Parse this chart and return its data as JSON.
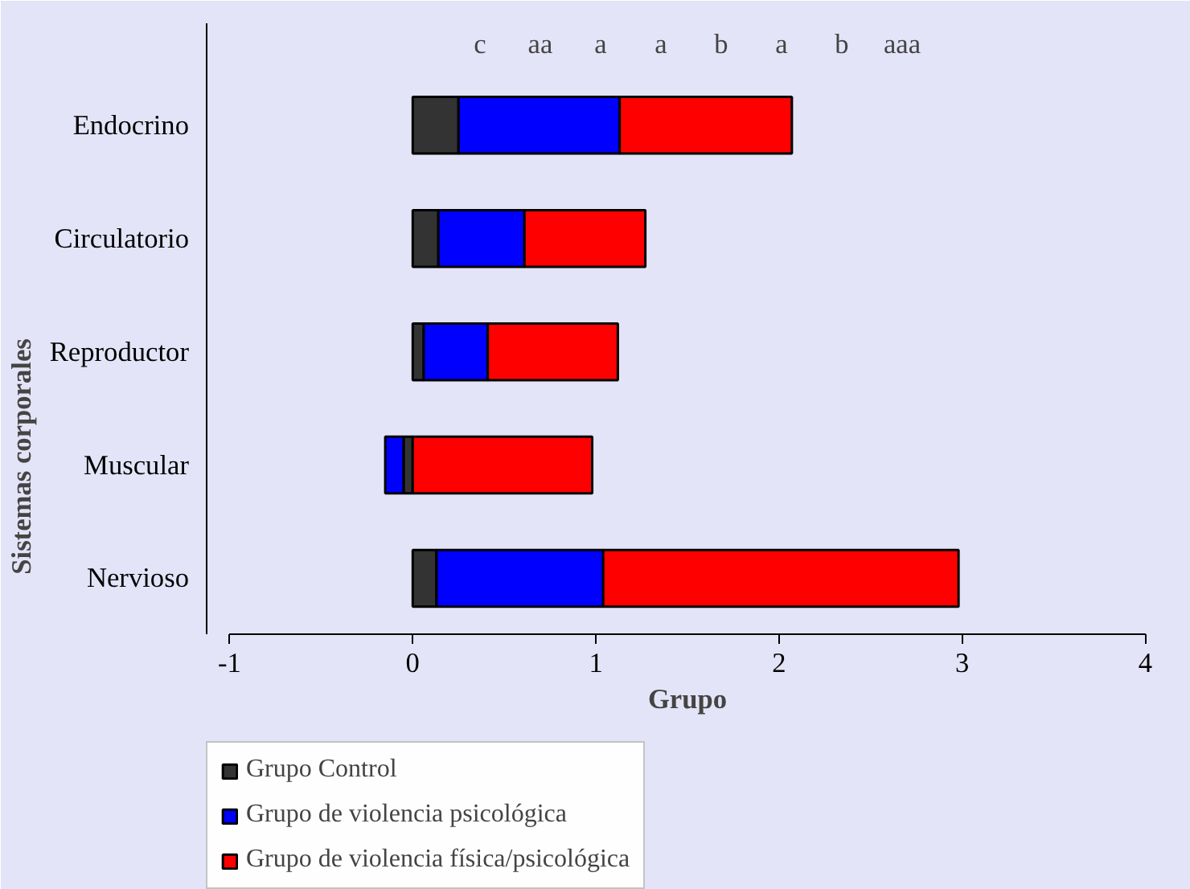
{
  "chart_data": {
    "type": "bar",
    "orientation": "horizontal",
    "stacked": true,
    "xlabel": "Grupo",
    "ylabel": "Sistemas corporales",
    "categories": [
      "Endocrino",
      "Circulatorio",
      "Reproductor",
      "Muscular",
      "Nervioso"
    ],
    "series": [
      {
        "name": "Grupo Control",
        "color": "#333333",
        "values": [
          0.25,
          0.14,
          0.06,
          -0.05,
          0.13
        ]
      },
      {
        "name": "Grupo de violencia psicológica",
        "color": "#0000ff",
        "values": [
          0.88,
          0.47,
          0.35,
          -0.1,
          0.91
        ]
      },
      {
        "name": "Grupo de violencia física/psicológica",
        "color": "#ff0000",
        "values": [
          0.94,
          0.66,
          0.71,
          0.98,
          1.94
        ]
      }
    ],
    "xlim": [
      -1,
      4
    ],
    "xticks": [
      -1,
      0,
      1,
      2,
      3,
      4
    ],
    "grid": false,
    "legend": "bottom left",
    "annotations": [
      "c",
      "aa",
      "a",
      "a",
      "b",
      "a",
      "b",
      "aaa"
    ]
  }
}
